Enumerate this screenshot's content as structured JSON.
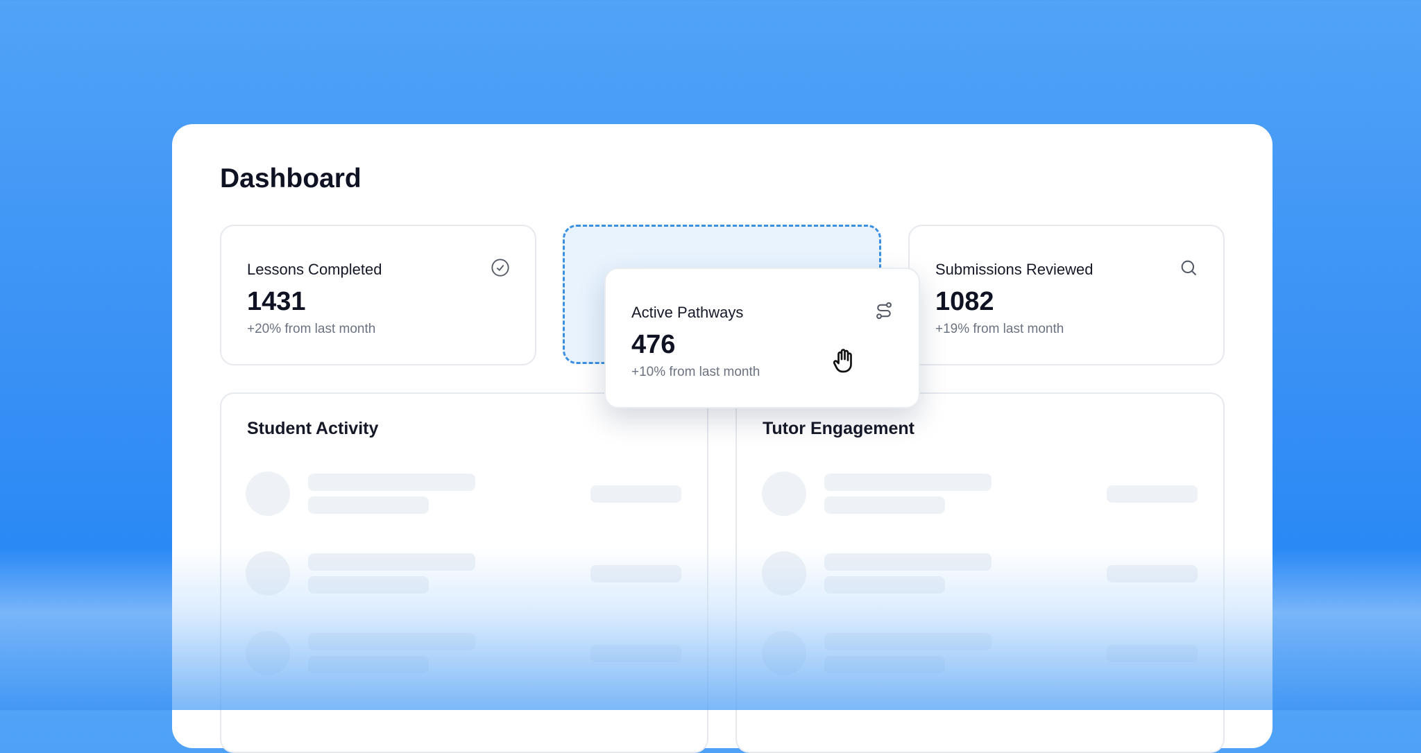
{
  "header": {
    "title": "Dashboard"
  },
  "stats": [
    {
      "label": "Lessons Completed",
      "value": "1431",
      "change": "+20% from last month",
      "icon": "check-circle-icon"
    },
    {
      "label": "Active Pathways",
      "value": "476",
      "change": "+10% from last month",
      "icon": "route-icon"
    },
    {
      "label": "Submissions Reviewed",
      "value": "1082",
      "change": "+19% from last month",
      "icon": "search-icon"
    }
  ],
  "panels": [
    {
      "title": "Student Activity"
    },
    {
      "title": "Tutor Engagement"
    }
  ],
  "colors": {
    "background": "#3a91f5",
    "drop_zone": "#e8f3fe",
    "drop_border": "#3b8fe0"
  }
}
